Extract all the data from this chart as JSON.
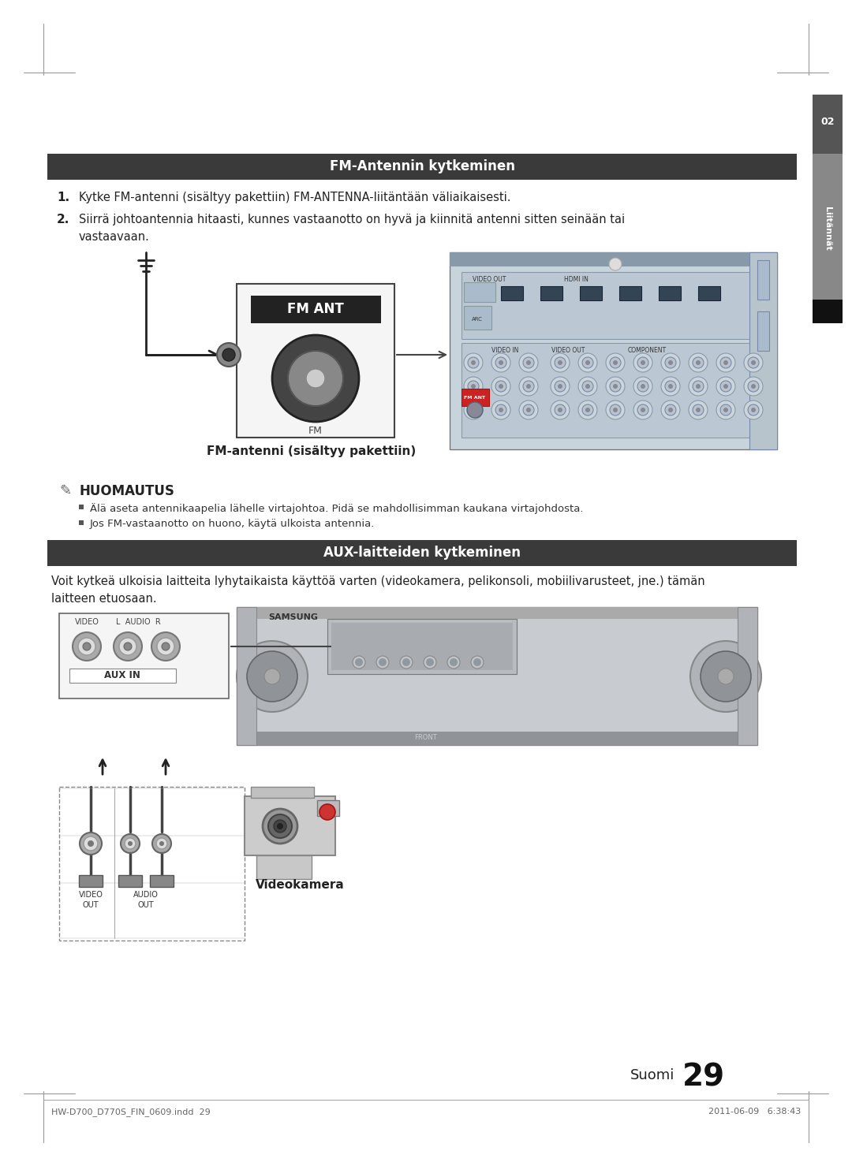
{
  "page_bg": "#ffffff",
  "header_bar_color": "#3a3a3a",
  "header_text_color": "#ffffff",
  "section1_title": "FM-Antennin kytkeminen",
  "section2_title": "AUX-laitteiden kytkeminen",
  "step1": "Kytke FM-antenni (sisältyy pakettiin) FM-ANTENNA-liitäntään väliaikaisesti.",
  "step2a": "Siirrä johtoantennia hitaasti, kunnes vastaanotto on hyvä ja kiinnitä antenni sitten seinään tai",
  "step2b": "vastaavaan.",
  "caption1": "FM-antenni (sisältyy pakettiin)",
  "note_title": "HUOMAUTUS",
  "note1": "Älä aseta antennikaapelia lähelle virtajohtoa. Pidä se mahdollisimman kaukana virtajohdosta.",
  "note2": "Jos FM-vastaanotto on huono, käytä ulkoista antennia.",
  "aux_intro1": "Voit kytkeä ulkoisia laitteita lyhytaikaista käyttöä varten (videokamera, pelikonsoli, mobiilivarusteet, jne.) tämän",
  "aux_intro2": "laitteen etuosaan.",
  "caption2": "Videokamera",
  "footer_left": "HW-D700_D770S_FIN_0609.indd  29",
  "footer_right": "2011-06-09   6:38:43",
  "page_num": "29",
  "page_lang": "Suomi",
  "side_num": "02",
  "side_label": "Liitännät"
}
